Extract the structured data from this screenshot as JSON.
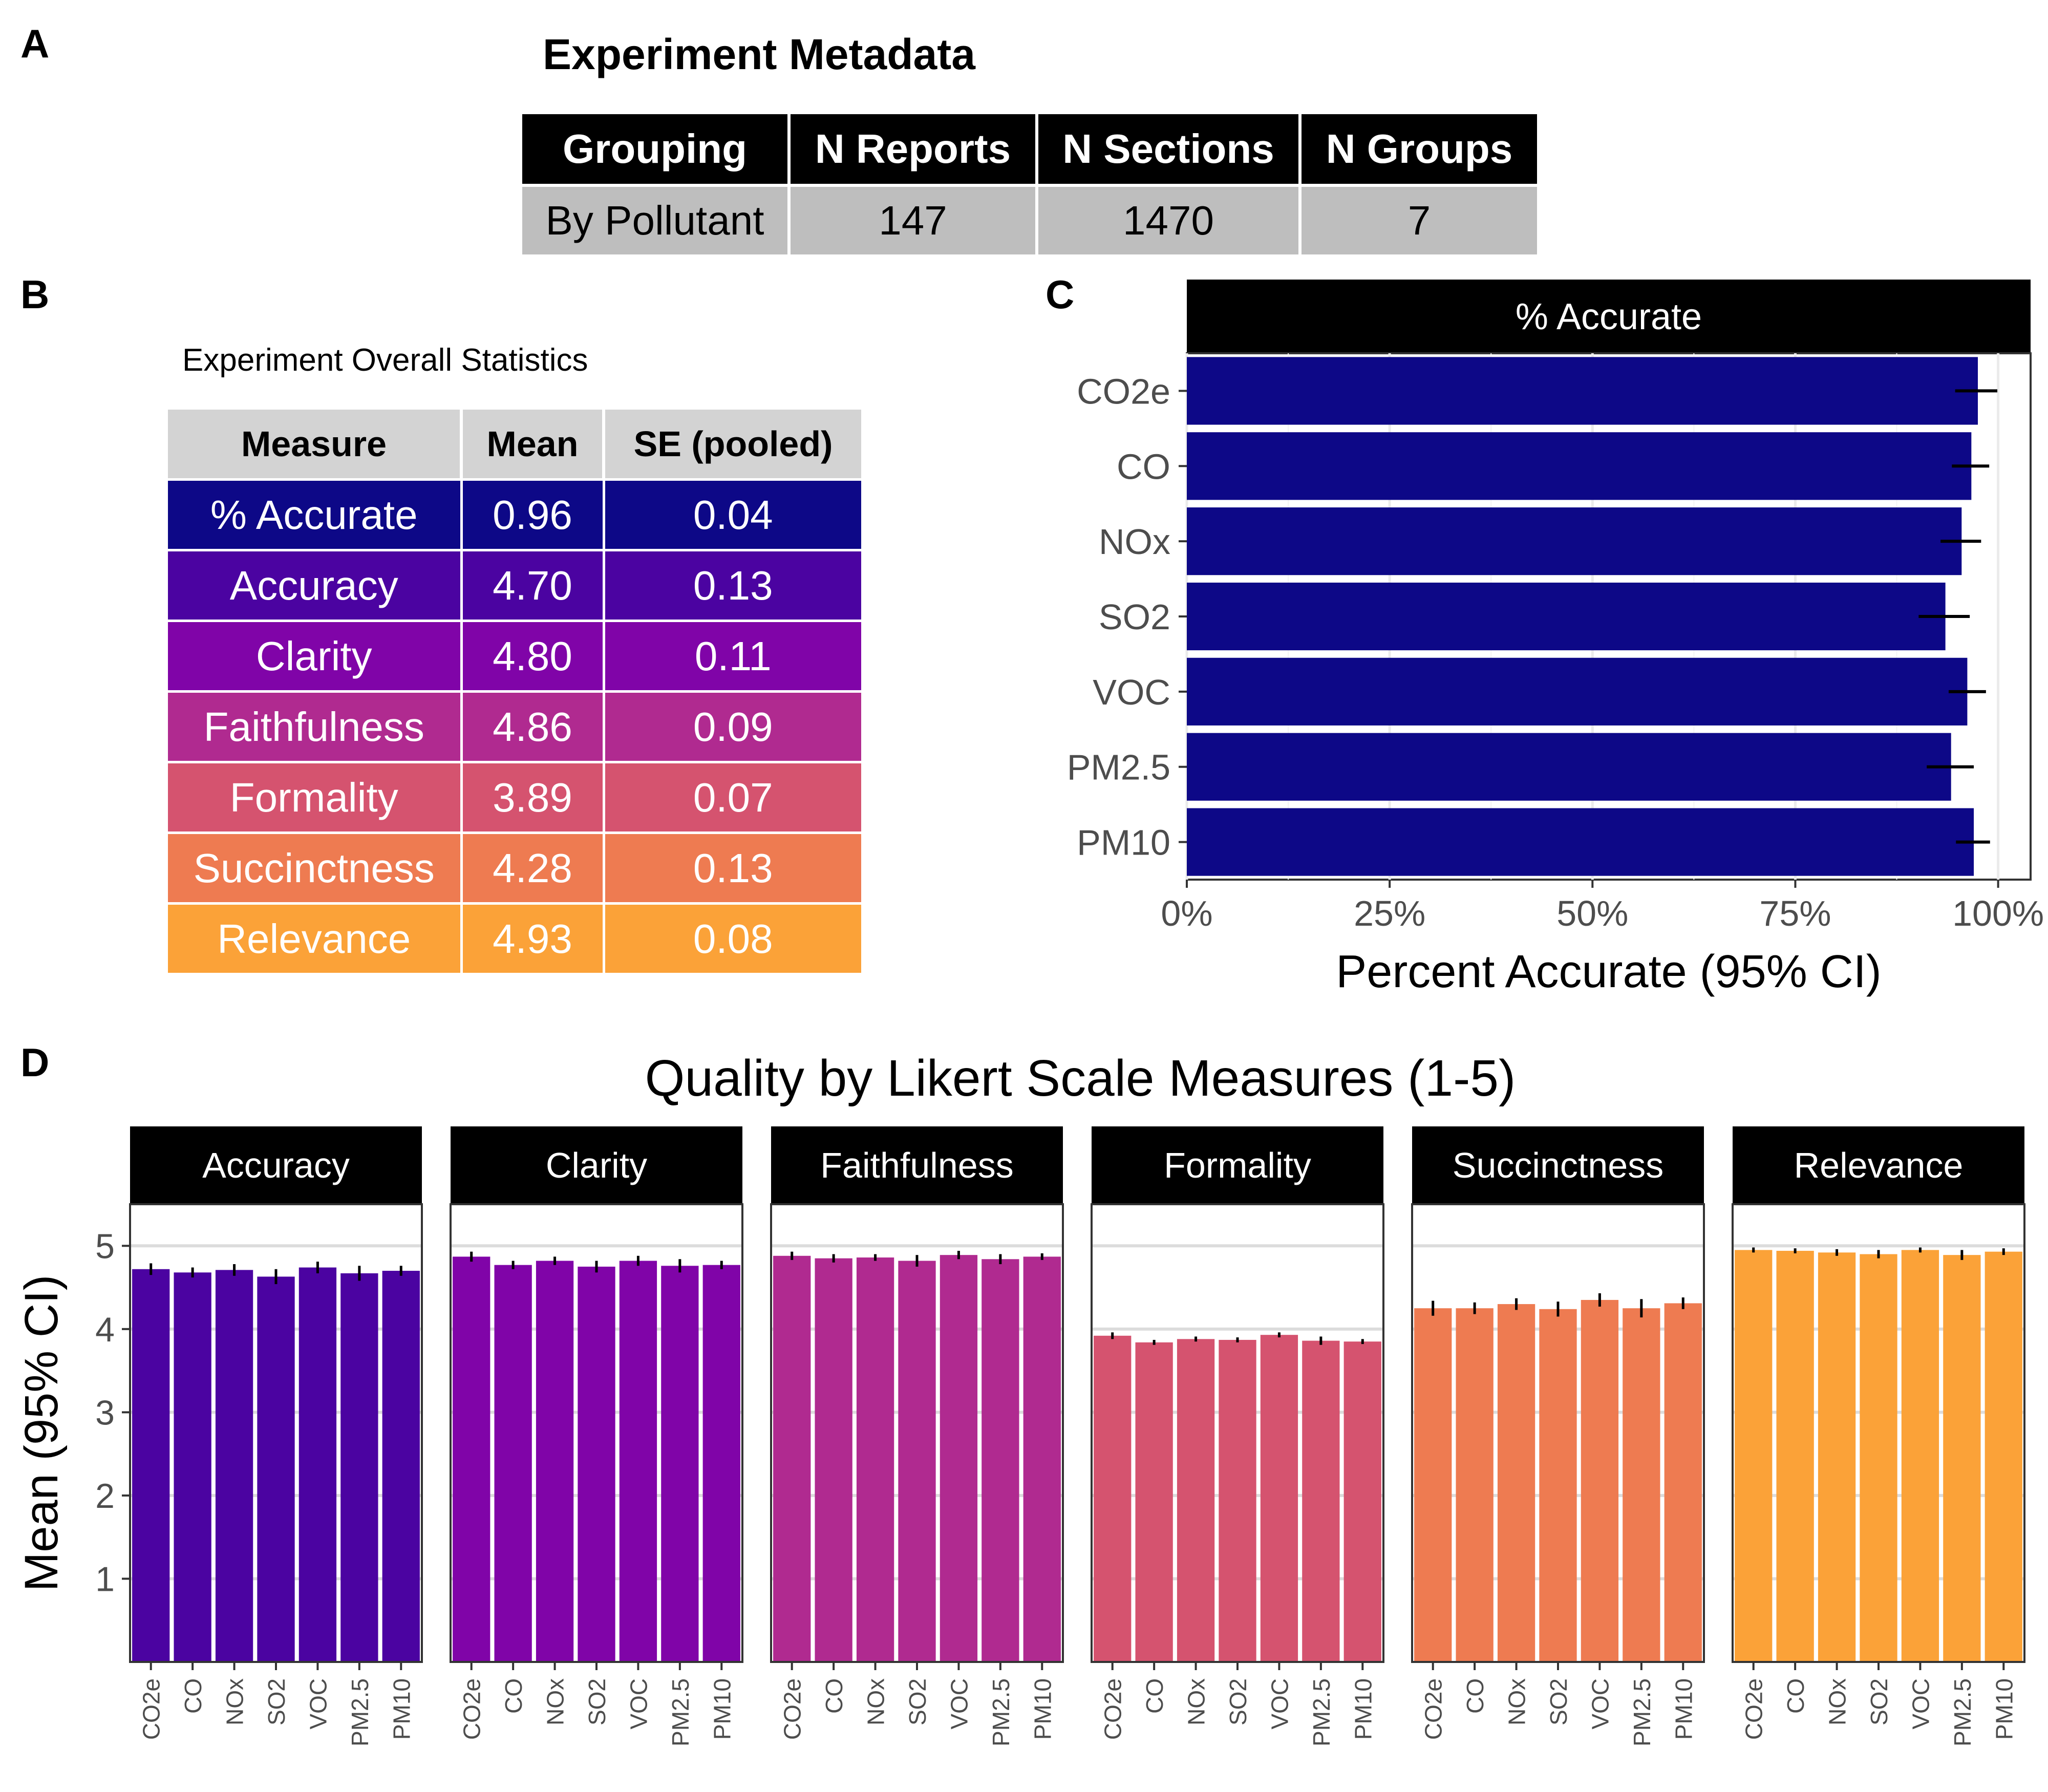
{
  "panels": {
    "a": "A",
    "b": "B",
    "c": "C",
    "d": "D"
  },
  "metadata": {
    "title": "Experiment Metadata",
    "headers": [
      "Grouping",
      "N Reports",
      "N Sections",
      "N Groups"
    ],
    "row": [
      "By Pollutant",
      "147",
      "1470",
      "7"
    ]
  },
  "stats": {
    "title": "Experiment Overall Statistics",
    "headers": [
      "Measure",
      "Mean",
      "SE (pooled)"
    ],
    "rows": [
      {
        "measure": "% Accurate",
        "mean": "0.96",
        "se": "0.04",
        "color": "#0d0887"
      },
      {
        "measure": "Accuracy",
        "mean": "4.70",
        "se": "0.13",
        "color": "#4b03a1"
      },
      {
        "measure": "Clarity",
        "mean": "4.80",
        "se": "0.11",
        "color": "#8004a8"
      },
      {
        "measure": "Faithfulness",
        "mean": "4.86",
        "se": "0.09",
        "color": "#b02a90"
      },
      {
        "measure": "Formality",
        "mean": "3.89",
        "se": "0.07",
        "color": "#d5536f"
      },
      {
        "measure": "Succinctness",
        "mean": "4.28",
        "se": "0.13",
        "color": "#ee7b51"
      },
      {
        "measure": "Relevance",
        "mean": "4.93",
        "se": "0.08",
        "color": "#fba238"
      }
    ]
  },
  "chart_data": [
    {
      "type": "bar",
      "orientation": "horizontal",
      "strip": "% Accurate",
      "xlabel": "Percent Accurate (95% CI)",
      "ylabel": "",
      "xlim": [
        0,
        1.04
      ],
      "xticks": [
        0,
        0.25,
        0.5,
        0.75,
        1.0
      ],
      "xtick_labels": [
        "0%",
        "25%",
        "50%",
        "75%",
        "100%"
      ],
      "grid": true,
      "categories": [
        "CO2e",
        "CO",
        "NOx",
        "SO2",
        "VOC",
        "PM2.5",
        "PM10"
      ],
      "values": [
        0.975,
        0.967,
        0.955,
        0.935,
        0.962,
        0.942,
        0.97
      ],
      "ci_low": [
        0.947,
        0.943,
        0.929,
        0.902,
        0.939,
        0.912,
        0.948
      ],
      "ci_high": [
        0.999,
        0.989,
        0.979,
        0.965,
        0.985,
        0.97,
        0.99
      ],
      "color": "#0d0887"
    },
    {
      "type": "bar",
      "title": "Quality by Likert Scale Measures (1-5)",
      "ylabel": "Mean (95% CI)",
      "ylim": [
        0,
        5.5
      ],
      "yticks": [
        1,
        2,
        3,
        4,
        5
      ],
      "grid": true,
      "categories": [
        "CO2e",
        "CO",
        "NOx",
        "SO2",
        "VOC",
        "PM2.5",
        "PM10"
      ],
      "facets": [
        {
          "name": "Accuracy",
          "color": "#4b03a1",
          "values": [
            4.72,
            4.68,
            4.71,
            4.63,
            4.74,
            4.67,
            4.7
          ],
          "ci_low": [
            4.65,
            4.62,
            4.64,
            4.54,
            4.67,
            4.58,
            4.64
          ],
          "ci_high": [
            4.79,
            4.74,
            4.78,
            4.72,
            4.81,
            4.76,
            4.76
          ]
        },
        {
          "name": "Clarity",
          "color": "#8004a8",
          "values": [
            4.87,
            4.77,
            4.82,
            4.75,
            4.82,
            4.76,
            4.77
          ],
          "ci_low": [
            4.81,
            4.72,
            4.77,
            4.68,
            4.76,
            4.68,
            4.72
          ],
          "ci_high": [
            4.93,
            4.82,
            4.87,
            4.82,
            4.88,
            4.84,
            4.82
          ]
        },
        {
          "name": "Faithfulness",
          "color": "#b02a90",
          "values": [
            4.88,
            4.85,
            4.86,
            4.82,
            4.89,
            4.84,
            4.87
          ],
          "ci_low": [
            4.83,
            4.8,
            4.82,
            4.75,
            4.84,
            4.78,
            4.83
          ],
          "ci_high": [
            4.93,
            4.9,
            4.9,
            4.89,
            4.94,
            4.9,
            4.91
          ]
        },
        {
          "name": "Formality",
          "color": "#d5536f",
          "values": [
            3.92,
            3.84,
            3.88,
            3.87,
            3.93,
            3.86,
            3.85
          ],
          "ci_low": [
            3.88,
            3.81,
            3.85,
            3.84,
            3.9,
            3.81,
            3.82
          ],
          "ci_high": [
            3.96,
            3.87,
            3.91,
            3.9,
            3.96,
            3.91,
            3.88
          ]
        },
        {
          "name": "Succinctness",
          "color": "#ee7b51",
          "values": [
            4.25,
            4.25,
            4.3,
            4.24,
            4.35,
            4.25,
            4.31
          ],
          "ci_low": [
            4.16,
            4.18,
            4.23,
            4.15,
            4.27,
            4.14,
            4.24
          ],
          "ci_high": [
            4.34,
            4.32,
            4.37,
            4.33,
            4.43,
            4.36,
            4.38
          ]
        },
        {
          "name": "Relevance",
          "color": "#fba238",
          "values": [
            4.95,
            4.94,
            4.92,
            4.9,
            4.95,
            4.89,
            4.93
          ],
          "ci_low": [
            4.92,
            4.91,
            4.88,
            4.85,
            4.92,
            4.83,
            4.89
          ],
          "ci_high": [
            4.98,
            4.97,
            4.96,
            4.95,
            4.98,
            4.95,
            4.97
          ]
        }
      ]
    }
  ]
}
